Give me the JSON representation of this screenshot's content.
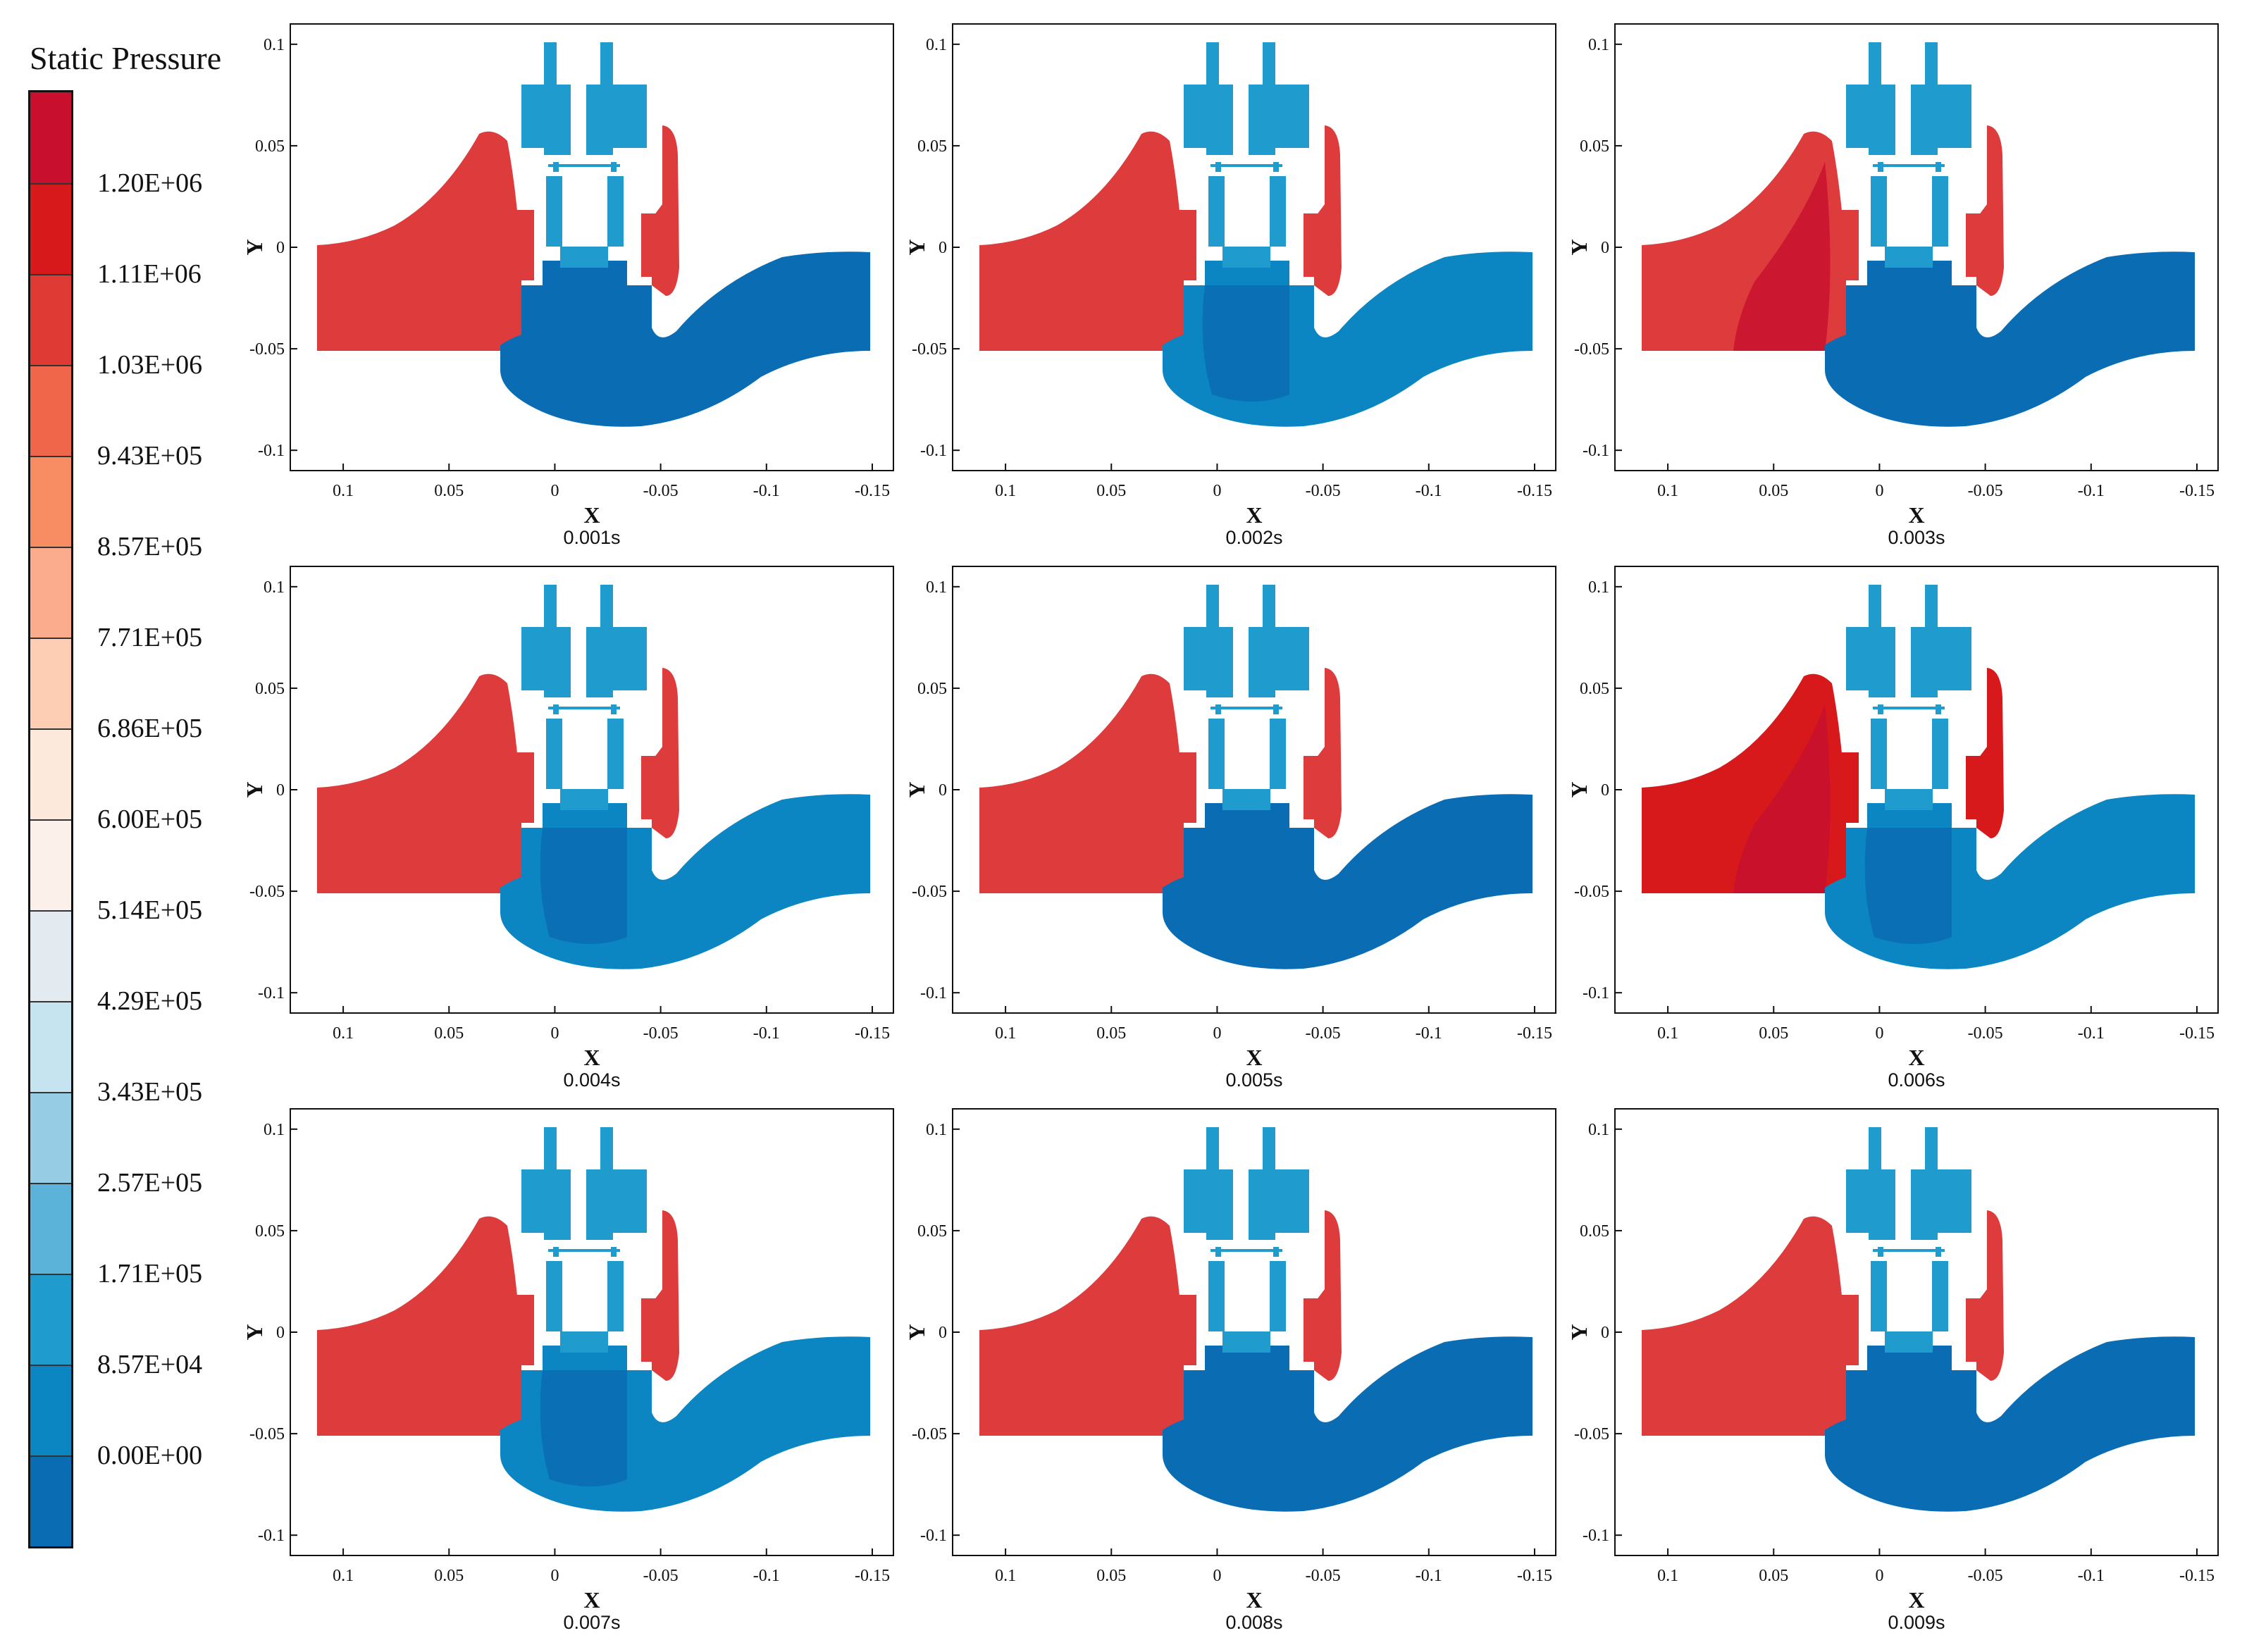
{
  "legend": {
    "title": "Static Pressure",
    "labels": [
      "1.20E+06",
      "1.11E+06",
      "1.03E+06",
      "9.43E+05",
      "8.57E+05",
      "7.71E+05",
      "6.86E+05",
      "6.00E+05",
      "5.14E+05",
      "4.29E+05",
      "3.43E+05",
      "2.57E+05",
      "1.71E+05",
      "8.57E+04",
      "0.00E+00"
    ],
    "colors": [
      "#c8102e",
      "#d7191c",
      "#e03a35",
      "#f0664a",
      "#f88c63",
      "#fbac8c",
      "#fdcdb4",
      "#fde8dc",
      "#fbf1ea",
      "#e3ebf0",
      "#c6e3f0",
      "#96cde5",
      "#5bb3d9",
      "#1f9ccd",
      "#0b86c2",
      "#0a6db4"
    ]
  },
  "axes": {
    "x_ticks": [
      "0.1",
      "0.05",
      "0",
      "-0.05",
      "-0.1",
      "-0.15"
    ],
    "y_ticks": [
      "0.1",
      "0.05",
      "0",
      "-0.05",
      "-0.1"
    ],
    "xlabel": "X",
    "ylabel": "Y"
  },
  "panels": [
    {
      "caption": "0.001s",
      "outlet_color": "#0a6db4",
      "inlet_color": "#de3c3c",
      "inlet_hot": false
    },
    {
      "caption": "0.002s",
      "outlet_color": "#0b86c2",
      "inlet_color": "#de3c3c",
      "inlet_hot": false
    },
    {
      "caption": "0.003s",
      "outlet_color": "#0a6db4",
      "inlet_color": "#de3c3c",
      "inlet_hot": true
    },
    {
      "caption": "0.004s",
      "outlet_color": "#0b86c2",
      "inlet_color": "#de3c3c",
      "inlet_hot": false
    },
    {
      "caption": "0.005s",
      "outlet_color": "#0a6db4",
      "inlet_color": "#de3c3c",
      "inlet_hot": false
    },
    {
      "caption": "0.006s",
      "outlet_color": "#0b86c2",
      "inlet_color": "#d7191c",
      "inlet_hot": true
    },
    {
      "caption": "0.007s",
      "outlet_color": "#0b86c2",
      "inlet_color": "#de3c3c",
      "inlet_hot": false
    },
    {
      "caption": "0.008s",
      "outlet_color": "#0a6db4",
      "inlet_color": "#de3c3c",
      "inlet_hot": false
    },
    {
      "caption": "0.009s",
      "outlet_color": "#0a6db4",
      "inlet_color": "#de3c3c",
      "inlet_hot": false
    }
  ]
}
